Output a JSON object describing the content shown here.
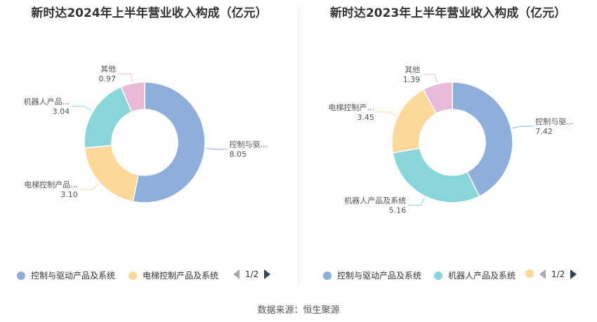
{
  "source_text": "数据来源：恒生聚源",
  "chart_data": [
    {
      "type": "pie",
      "variant": "donut",
      "title": "新时达2024年上半年营业收入构成（亿元）",
      "slices": [
        {
          "name": "控制与驱动产品及系统",
          "label": "控制与驱...",
          "value": 8.05,
          "value_text": "8.05",
          "color": "#8eaedb"
        },
        {
          "name": "电梯控制产品及系统",
          "label": "电梯控制产品...",
          "value": 3.1,
          "value_text": "3.10",
          "color": "#fdd898"
        },
        {
          "name": "机器人产品及系统",
          "label": "机器人产品...",
          "value": 3.04,
          "value_text": "3.04",
          "color": "#88d6d9"
        },
        {
          "name": "其他",
          "label": "其他",
          "value": 0.97,
          "value_text": "0.97",
          "color": "#e9b9d9"
        }
      ],
      "legend": {
        "placement": "bottom",
        "visible_entries": [
          "控制与驱动产品及系统",
          "电梯控制产品及系统"
        ],
        "page_text": "1/2"
      }
    },
    {
      "type": "pie",
      "variant": "donut",
      "title": "新时达2023年上半年营业收入构成（亿元）",
      "slices": [
        {
          "name": "控制与驱动产品及系统",
          "label": "控制与驱...",
          "value": 7.42,
          "value_text": "7.42",
          "color": "#8eaedb"
        },
        {
          "name": "机器人产品及系统",
          "label": "机器人产品及系统",
          "value": 5.16,
          "value_text": "5.16",
          "color": "#88d6d9"
        },
        {
          "name": "电梯控制产品及系统",
          "label": "电梯控制产...",
          "value": 3.45,
          "value_text": "3.45",
          "color": "#fdd898"
        },
        {
          "name": "其他",
          "label": "其他",
          "value": 1.39,
          "value_text": "1.39",
          "color": "#e9b9d9"
        }
      ],
      "legend": {
        "placement": "bottom",
        "visible_entries": [
          "控制与驱动产品及系统",
          "机器人产品及系统",
          ""
        ],
        "page_text": "1/2"
      }
    }
  ]
}
